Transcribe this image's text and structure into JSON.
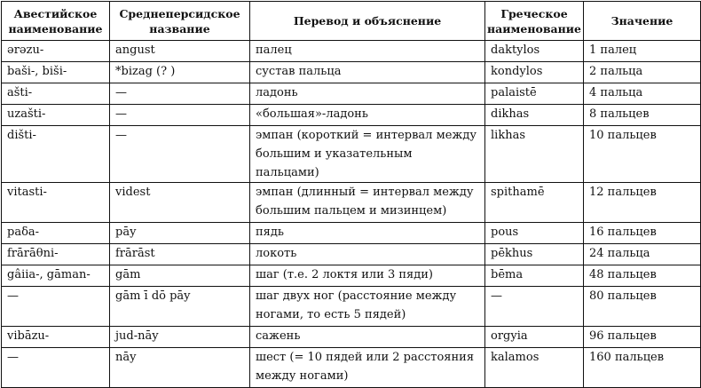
{
  "table": {
    "headers": [
      "Авестийское наименование",
      "Среднеперсидское название",
      "Перевод и объяснение",
      "Греческое наименование",
      "Значение"
    ],
    "rows": [
      [
        "ərəzu-",
        "angust",
        "палец",
        "daktylos",
        "1 палец"
      ],
      [
        "baši-, biši-",
        "*bizag (? )",
        "сустав пальца",
        "kondylos",
        "2 пальца"
      ],
      [
        "ašti-",
        "—",
        "ладонь",
        "palaistē",
        "4 пальца"
      ],
      [
        "uzašti-",
        "—",
        "«большая»-ладонь",
        "dikhas",
        "8 пальцев"
      ],
      [
        "dišti-",
        "—",
        "эмпан (короткий = интервал между большим и указательным пальцами)",
        "likhas",
        "10 пальцев"
      ],
      [
        "vitasti-",
        "videst",
        "эмпан (длинный = интервал между большим пальцем и мизинцем)",
        "spithamē",
        "12 пальцев"
      ],
      [
        "paδa-",
        "pāy",
        "пядь",
        "pous",
        "16 пальцев"
      ],
      [
        "frārāθni-",
        "frārāst",
        "локоть",
        "pēkhus",
        "24 пальца"
      ],
      [
        "gâiia-, gāman-",
        "gām",
        "шаг (т.е. 2 локтя или 3 пяди)",
        "bēma",
        "48 пальцев"
      ],
      [
        "—",
        "gām ī dō pāy",
        "шаг двух ног (расстояние между ногами, то есть 5 пядей)",
        "—",
        "80 пальцев"
      ],
      [
        "vibāzu-",
        "jud-nāy",
        "сажень",
        "orgyia",
        "96 пальцев"
      ],
      [
        "—",
        "nāy",
        "шест (= 10 пядей или 2 расстояния между ногами)",
        "kalamos",
        "160 пальцев"
      ]
    ]
  }
}
